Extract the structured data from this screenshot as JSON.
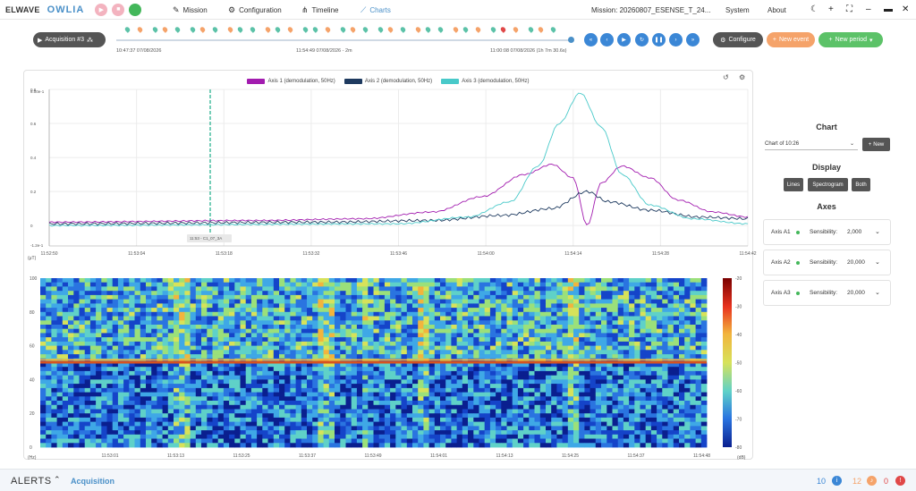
{
  "header": {
    "brand": "ELWAVE",
    "product": "OWLIA",
    "nav": [
      {
        "label": "Mission",
        "icon": "pencil-icon"
      },
      {
        "label": "Configuration",
        "icon": "gear-icon"
      },
      {
        "label": "Timeline",
        "icon": "timeline-icon"
      },
      {
        "label": "Charts",
        "icon": "chart-icon"
      }
    ],
    "mission": "Mission: 20260807_ESENSE_T_24...",
    "system_label": "System",
    "about_label": "About"
  },
  "timeline": {
    "acquisition_label": "Acquisition #3",
    "start_label": "10:47:37 07/08/2026",
    "mid_label": "11:54:49 07/08/2026 - 2m",
    "end_label": "11:00:08 07/08/2026 (1h 7m 30.6s)",
    "configure_label": "Configure",
    "new_event_label": "New event",
    "new_period_label": "New period"
  },
  "chart": {
    "legend": [
      {
        "label": "Axis 1 (demodulation, 50Hz)",
        "color": "#a21caf"
      },
      {
        "label": "Axis 2 (demodulation, 50Hz)",
        "color": "#1e3a5f"
      },
      {
        "label": "Axis 3 (demodulation, 50Hz)",
        "color": "#48c9c9"
      }
    ],
    "cursor_label": "11:53 - C1_07_3A",
    "line_y_unit": "(μT)",
    "spec_y_unit": "(Hz)",
    "spec_colorbar_unit": "(dB)"
  },
  "chart_data": [
    {
      "type": "line",
      "title": "",
      "x": [
        "11:52:50",
        "11:53:04",
        "11:53:18",
        "11:53:32",
        "11:53:46",
        "11:54:00",
        "11:54:14",
        "11:54:28",
        "11:54:42"
      ],
      "ytick_labels": [
        "8.00e-1",
        "0.8",
        "0.6",
        "0.4",
        "0.2",
        "0",
        "-1.2e-1"
      ],
      "ylim": [
        -0.12,
        0.8
      ],
      "series": [
        {
          "name": "Axis 1 (demodulation, 50Hz)",
          "color": "#a21caf",
          "points": [
            [
              0,
              0.02
            ],
            [
              0.3,
              0.03
            ],
            [
              0.45,
              0.04
            ],
            [
              0.55,
              0.08
            ],
            [
              0.62,
              0.17
            ],
            [
              0.68,
              0.3
            ],
            [
              0.72,
              0.36
            ],
            [
              0.75,
              0.28
            ],
            [
              0.77,
              0.0
            ],
            [
              0.79,
              0.25
            ],
            [
              0.82,
              0.35
            ],
            [
              0.86,
              0.28
            ],
            [
              0.9,
              0.15
            ],
            [
              0.95,
              0.08
            ],
            [
              1,
              0.05
            ]
          ]
        },
        {
          "name": "Axis 2 (demodulation, 50Hz)",
          "color": "#1e3a5f",
          "points": [
            [
              0,
              0.01
            ],
            [
              0.4,
              0.02
            ],
            [
              0.55,
              0.03
            ],
            [
              0.65,
              0.06
            ],
            [
              0.72,
              0.1
            ],
            [
              0.77,
              0.2
            ],
            [
              0.8,
              0.14
            ],
            [
              0.86,
              0.09
            ],
            [
              0.93,
              0.05
            ],
            [
              1,
              0.04
            ]
          ]
        },
        {
          "name": "Axis 3 (demodulation, 50Hz)",
          "color": "#48c9c9",
          "points": [
            [
              0,
              0.0
            ],
            [
              0.5,
              0.01
            ],
            [
              0.6,
              0.05
            ],
            [
              0.66,
              0.14
            ],
            [
              0.7,
              0.35
            ],
            [
              0.73,
              0.6
            ],
            [
              0.76,
              0.78
            ],
            [
              0.79,
              0.58
            ],
            [
              0.82,
              0.3
            ],
            [
              0.86,
              0.12
            ],
            [
              0.92,
              0.04
            ],
            [
              1,
              0.01
            ]
          ]
        }
      ]
    },
    {
      "type": "heatmap",
      "title": "",
      "x": [
        "11:53:01",
        "11:53:13",
        "11:53:25",
        "11:53:37",
        "11:53:49",
        "11:54:01",
        "11:54:13",
        "11:54:25",
        "11:54:37",
        "11:54:48"
      ],
      "y": [
        0,
        20,
        40,
        60,
        80,
        100
      ],
      "ylim": [
        0,
        100
      ],
      "colorbar": [
        -20,
        -30,
        -40,
        -50,
        -60,
        -70,
        -80
      ],
      "line_frequency_hz": 50
    }
  ],
  "sidebar": {
    "chart_title": "Chart",
    "chart_select": "Chart of 10:26",
    "new_label": "New",
    "display_title": "Display",
    "display_options": [
      "Lines",
      "Spectrogram",
      "Both"
    ],
    "axes_title": "Axes",
    "axes": [
      {
        "name": "Axis A1",
        "sensibility_label": "Sensibility:",
        "sensibility": "2,000"
      },
      {
        "name": "Axis A2",
        "sensibility_label": "Sensibility:",
        "sensibility": "20,000"
      },
      {
        "name": "Axis A3",
        "sensibility_label": "Sensibility:",
        "sensibility": "20,000"
      }
    ]
  },
  "footer": {
    "alerts_label": "ALERTS",
    "tab_label": "Acquisition",
    "info_count": "10",
    "warning_count": "12",
    "error_count": "0",
    "info_color": "#3b87d6",
    "warning_color": "#f5a36a",
    "error_color": "#e04848"
  }
}
